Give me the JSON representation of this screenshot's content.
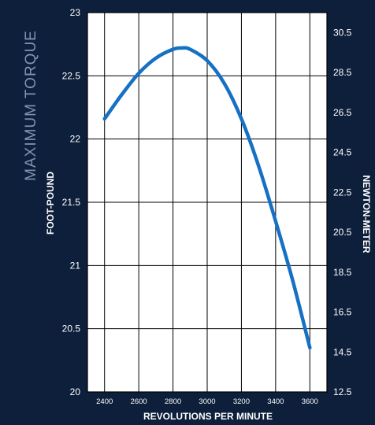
{
  "chart_data": {
    "type": "line",
    "side_title": "MAXIMUM TORQUE",
    "xlabel": "REVOLUTIONS PER MINUTE",
    "ylabel_left": "FOOT-POUND",
    "ylabel_right": "NEWTON-METER",
    "xlim": [
      2300,
      3700
    ],
    "ylim_left": [
      20,
      23
    ],
    "ylim_right": [
      12.5,
      31.5
    ],
    "x_ticks": [
      2400,
      2600,
      2800,
      3000,
      3200,
      3400,
      3600
    ],
    "x_tick_labels": [
      "2400",
      "2600",
      "2800",
      "3000",
      "3200",
      "3400",
      "3600"
    ],
    "y_left_ticks": [
      20,
      20.5,
      21,
      21.5,
      22,
      22.5,
      23
    ],
    "y_left_tick_labels": [
      "20",
      "20.5",
      "21",
      "21.5",
      "22",
      "22.5",
      "23"
    ],
    "y_right_ticks": [
      12.5,
      14.5,
      16.5,
      18.5,
      20.5,
      22.5,
      24.5,
      26.5,
      28.5,
      30.5
    ],
    "y_right_tick_labels": [
      "12.5",
      "14.5",
      "16.5",
      "18.5",
      "20.5",
      "22.5",
      "24.5",
      "26.5",
      "28.5",
      "30.5"
    ],
    "grid": true,
    "series": [
      {
        "x": [
          2400,
          2500,
          2600,
          2700,
          2800,
          2850,
          2900,
          3000,
          3100,
          3200,
          3300,
          3400,
          3500,
          3600
        ],
        "y": [
          22.16,
          22.35,
          22.52,
          22.64,
          22.71,
          22.72,
          22.71,
          22.62,
          22.44,
          22.16,
          21.79,
          21.35,
          20.88,
          20.35
        ]
      }
    ],
    "colors": {
      "background": "#0d1f3a",
      "plot_background": "#ffffff",
      "grid": "#000000",
      "line": "#1670c4",
      "side_title": "#7f93b3",
      "text": "#ffffff"
    }
  }
}
